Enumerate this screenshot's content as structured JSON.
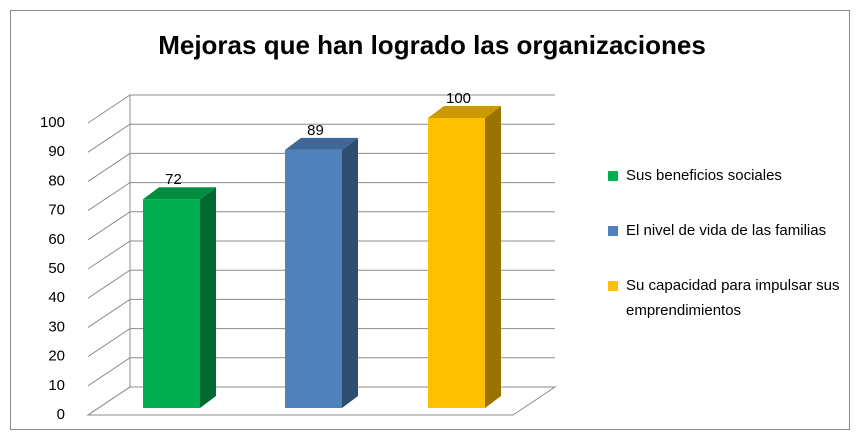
{
  "chart_data": {
    "type": "bar3d",
    "title": "Mejoras que han logrado las organizaciones",
    "categories": [
      null
    ],
    "series": [
      {
        "name": "Sus beneficios sociales",
        "color": "#00b050",
        "values": [
          72
        ]
      },
      {
        "name": "El nivel de vida de las familias",
        "color": "#4f81bd",
        "values": [
          89
        ]
      },
      {
        "name": "Su capacidad para impulsar sus emprendimientos",
        "color": "#ffc000",
        "values": [
          100
        ]
      }
    ],
    "ylim": [
      0,
      100
    ],
    "yticks": [
      0,
      10,
      20,
      30,
      40,
      50,
      60,
      70,
      80,
      90,
      100
    ],
    "grid": true,
    "legend": "right"
  }
}
